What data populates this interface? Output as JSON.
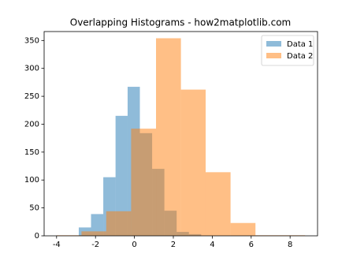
{
  "chart_data": {
    "type": "histogram",
    "title": "Overlapping Histograms - how2matplotlib.com",
    "series": [
      {
        "name": "Data 1",
        "color": "#1f77b4",
        "alpha": 0.5,
        "bins": [
          -2.86,
          -2.23,
          -1.6,
          -0.97,
          -0.35,
          0.28,
          0.91,
          1.54,
          2.17,
          2.8,
          3.43
        ],
        "values": [
          15,
          39,
          105,
          215,
          267,
          184,
          120,
          45,
          7,
          3
        ]
      },
      {
        "name": "Data 2",
        "color": "#ff7f0e",
        "alpha": 0.5,
        "bins": [
          -4.0,
          -2.72,
          -1.45,
          -0.17,
          1.11,
          2.39,
          3.66,
          4.94,
          6.22,
          7.49,
          8.77
        ],
        "values": [
          1,
          8,
          44,
          192,
          354,
          262,
          114,
          23,
          1,
          1
        ]
      }
    ],
    "xlim": [
      -4.64,
      9.41
    ],
    "xticks": [
      -4,
      -2,
      0,
      2,
      4,
      6,
      8
    ],
    "ylim": [
      0,
      366
    ],
    "yticks": [
      0,
      50,
      100,
      150,
      200,
      250,
      300,
      350
    ],
    "legend": "upper right"
  }
}
